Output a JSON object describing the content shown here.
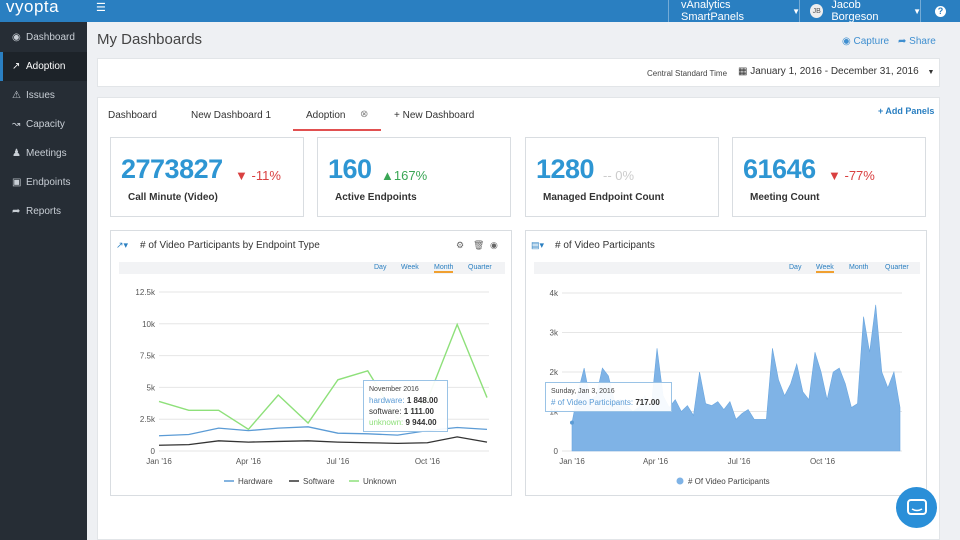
{
  "topbar": {
    "logo": "vyopta",
    "product": "vAnalytics SmartPanels",
    "user_initials": "JB",
    "user_name": "Jacob Borgeson"
  },
  "sidebar": {
    "items": [
      {
        "label": "Dashboard",
        "icon": "dashboard-icon"
      },
      {
        "label": "Adoption",
        "icon": "chart-line-icon"
      },
      {
        "label": "Issues",
        "icon": "warning-icon"
      },
      {
        "label": "Capacity",
        "icon": "area-chart-icon"
      },
      {
        "label": "Meetings",
        "icon": "people-icon"
      },
      {
        "label": "Endpoints",
        "icon": "endpoint-icon"
      },
      {
        "label": "Reports",
        "icon": "share-arrow-icon"
      }
    ],
    "active": "Adoption"
  },
  "header": {
    "title": "My Dashboards",
    "capture": "Capture",
    "share": "Share"
  },
  "datebar": {
    "timezone": "Central Standard Time",
    "range": "January 1, 2016 - December 31, 2016"
  },
  "tabs": [
    {
      "label": "Dashboard"
    },
    {
      "label": "New Dashboard 1"
    },
    {
      "label": "Adoption",
      "active": true
    },
    {
      "label": "+ New Dashboard"
    }
  ],
  "add_panels": "+ Add Panels",
  "kpis": [
    {
      "value": "2773827",
      "change": "-11%",
      "direction": "down",
      "label": "Call Minute (Video)"
    },
    {
      "value": "160",
      "change": "167%",
      "direction": "up",
      "label": "Active Endpoints"
    },
    {
      "value": "1280",
      "change": "-- 0%",
      "direction": "flat",
      "label": "Managed Endpoint Count"
    },
    {
      "value": "61646",
      "change": "-77%",
      "direction": "down",
      "label": "Meeting Count"
    }
  ],
  "colors": {
    "brand": "#2a7fc1",
    "kpi_value": "#2e96d3",
    "down": "#d94040",
    "up": "#3aa655",
    "hardware": "#5b9bd5",
    "software": "#333333",
    "unknown": "#8ee07a",
    "area": "#7fb3e6"
  },
  "chart_left": {
    "title": "# of Video Participants by Endpoint Type",
    "periods": [
      "Day",
      "Week",
      "Month",
      "Quarter"
    ],
    "selected_period": "Month",
    "y_ticks": [
      "12.5k",
      "10k",
      "7.5k",
      "5k",
      "2.5k",
      "0"
    ],
    "x_ticks": [
      "Jan '16",
      "Apr '16",
      "Jul '16",
      "Oct '16"
    ],
    "tooltip": {
      "header": "November 2016",
      "rows": [
        {
          "label": "hardware:",
          "value": "1 848.00"
        },
        {
          "label": "software:",
          "value": "1 111.00"
        },
        {
          "label": "unknown:",
          "value": "9 944.00"
        }
      ]
    },
    "legend": [
      "Hardware",
      "Software",
      "Unknown"
    ]
  },
  "chart_right": {
    "title": "# of Video Participants",
    "periods": [
      "Day",
      "Week",
      "Month",
      "Quarter"
    ],
    "selected_period": "Week",
    "y_ticks": [
      "4k",
      "3k",
      "2k",
      "1k",
      "0"
    ],
    "x_ticks": [
      "Jan '16",
      "Apr '16",
      "Jul '16",
      "Oct '16"
    ],
    "tooltip": {
      "header": "Sunday, Jan 3, 2016",
      "label": "# of Video Participants:",
      "value": "717.00"
    },
    "legend": [
      "# Of Video Participants"
    ]
  },
  "chart_data": [
    {
      "type": "line",
      "title": "# of Video Participants by Endpoint Type",
      "x": [
        "Jan 2016",
        "Feb 2016",
        "Mar 2016",
        "Apr 2016",
        "May 2016",
        "Jun 2016",
        "Jul 2016",
        "Aug 2016",
        "Sep 2016",
        "Oct 2016",
        "Nov 2016",
        "Dec 2016"
      ],
      "ylim": [
        0,
        12500
      ],
      "series": [
        {
          "name": "Hardware",
          "values": [
            1200,
            1300,
            1800,
            1600,
            1800,
            1900,
            1400,
            1350,
            1250,
            1600,
            1848,
            1700
          ]
        },
        {
          "name": "Software",
          "values": [
            450,
            500,
            800,
            700,
            750,
            800,
            700,
            650,
            600,
            650,
            1111,
            700
          ]
        },
        {
          "name": "Unknown",
          "values": [
            3900,
            3200,
            3200,
            1700,
            4400,
            2200,
            5600,
            6300,
            2500,
            4000,
            9944,
            4200
          ]
        }
      ],
      "legend": "bottom",
      "grid": true
    },
    {
      "type": "area",
      "title": "# of Video Participants",
      "x_range": [
        "Jan 3, 2016",
        "Dec 25, 2016"
      ],
      "ylim": [
        0,
        4000
      ],
      "series": [
        {
          "name": "# Of Video Participants",
          "values": [
            717,
            1500,
            2100,
            1300,
            1400,
            2100,
            1900,
            1250,
            1300,
            1150,
            1000,
            1100,
            1400,
            1050,
            2600,
            1400,
            1100,
            1300,
            1000,
            1150,
            900,
            2000,
            1200,
            1150,
            1250,
            1050,
            1250,
            800,
            950,
            1050,
            800,
            800,
            800,
            2600,
            1800,
            1400,
            1700,
            2200,
            1500,
            1300,
            2500,
            2000,
            1300,
            2000,
            2100,
            1700,
            1100,
            1200,
            3400,
            2500,
            3700,
            2000,
            1600,
            2000,
            1100
          ]
        }
      ],
      "legend": "bottom",
      "grid": true
    }
  ]
}
